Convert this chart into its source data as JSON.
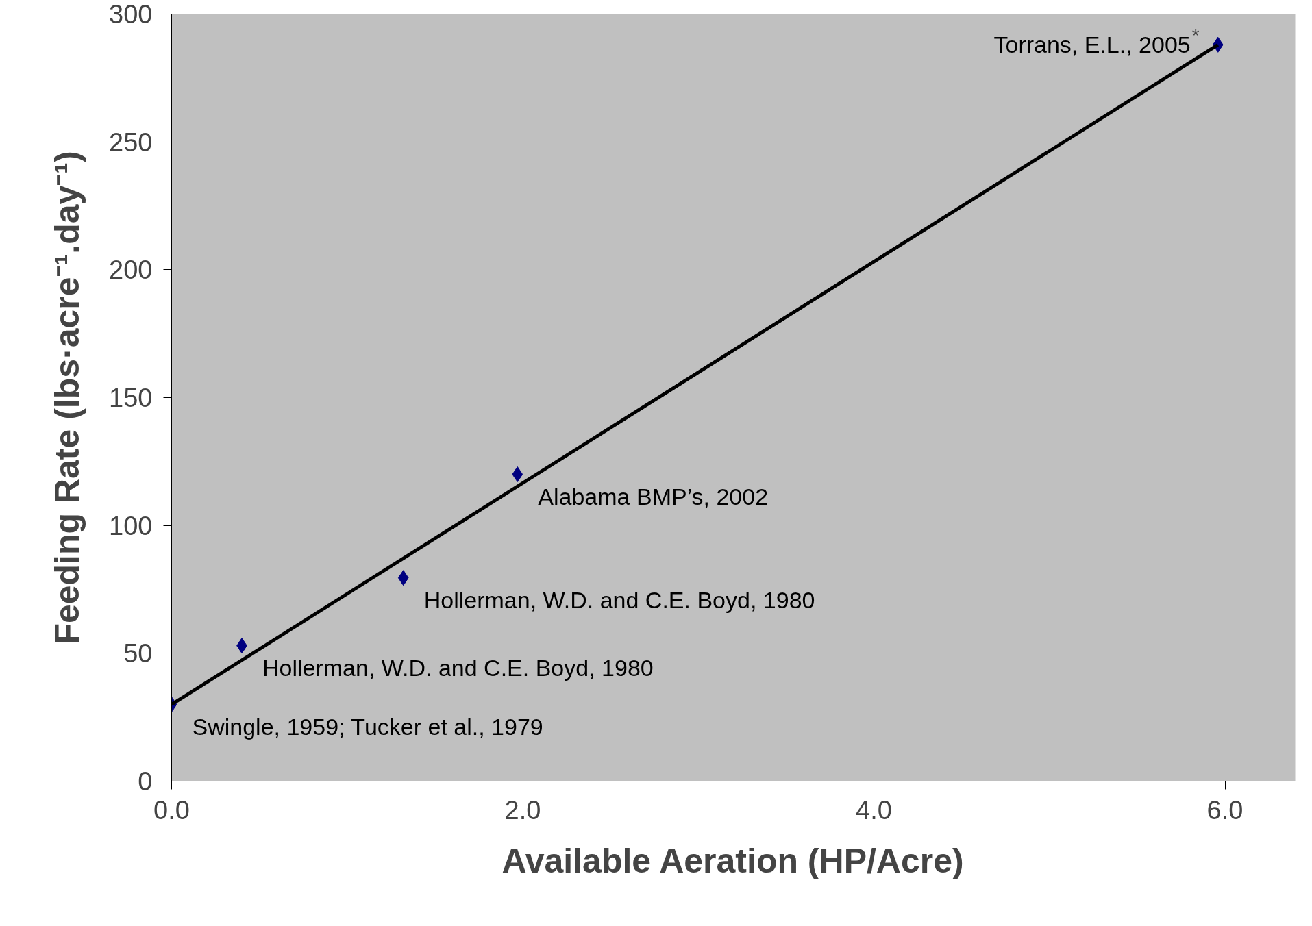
{
  "chart_data": {
    "type": "scatter",
    "xlabel": "Available Aeration (HP/Acre)",
    "ylabel": "Feeding Rate (lbs·acre⁻¹.day⁻¹)",
    "x": [
      0,
      0.4,
      1.32,
      1.97,
      5.96
    ],
    "series": [
      {
        "color": "#000080",
        "marker": "diamond",
        "values": [
          30,
          53,
          79.5,
          120,
          288
        ]
      },
      {
        "type": "line",
        "color": "#000000",
        "x": [
          0,
          5.96
        ],
        "values": [
          30,
          288
        ],
        "marker": "none",
        "line_style": "solid"
      }
    ],
    "xlim": [
      0,
      6.4
    ],
    "ylim": [
      0,
      300
    ],
    "xticks": [
      {
        "value": 0,
        "label": "0.0"
      },
      {
        "value": 2,
        "label": "2.0"
      },
      {
        "value": 4,
        "label": "4.0"
      },
      {
        "value": 6,
        "label": "6.0"
      }
    ],
    "yticks": [
      0,
      50,
      100,
      150,
      200,
      250,
      300
    ],
    "grid": false,
    "annotations": [
      {
        "text": "Swingle, 1959; Tucker et al., 1979",
        "x": 0,
        "y": 30
      },
      {
        "text": "Hollerman, W.D. and C.E. Boyd, 1980",
        "x": 0.4,
        "y": 53
      },
      {
        "text": "Hollerman, W.D. and C.E. Boyd, 1980",
        "x": 1.32,
        "y": 79.5
      },
      {
        "text": "Alabama BMP’s, 2002",
        "x": 1.97,
        "y": 120
      },
      {
        "text": "Torrans, E.L., 2005$^{*}$",
        "x": 5.96,
        "y": 288
      }
    ]
  }
}
